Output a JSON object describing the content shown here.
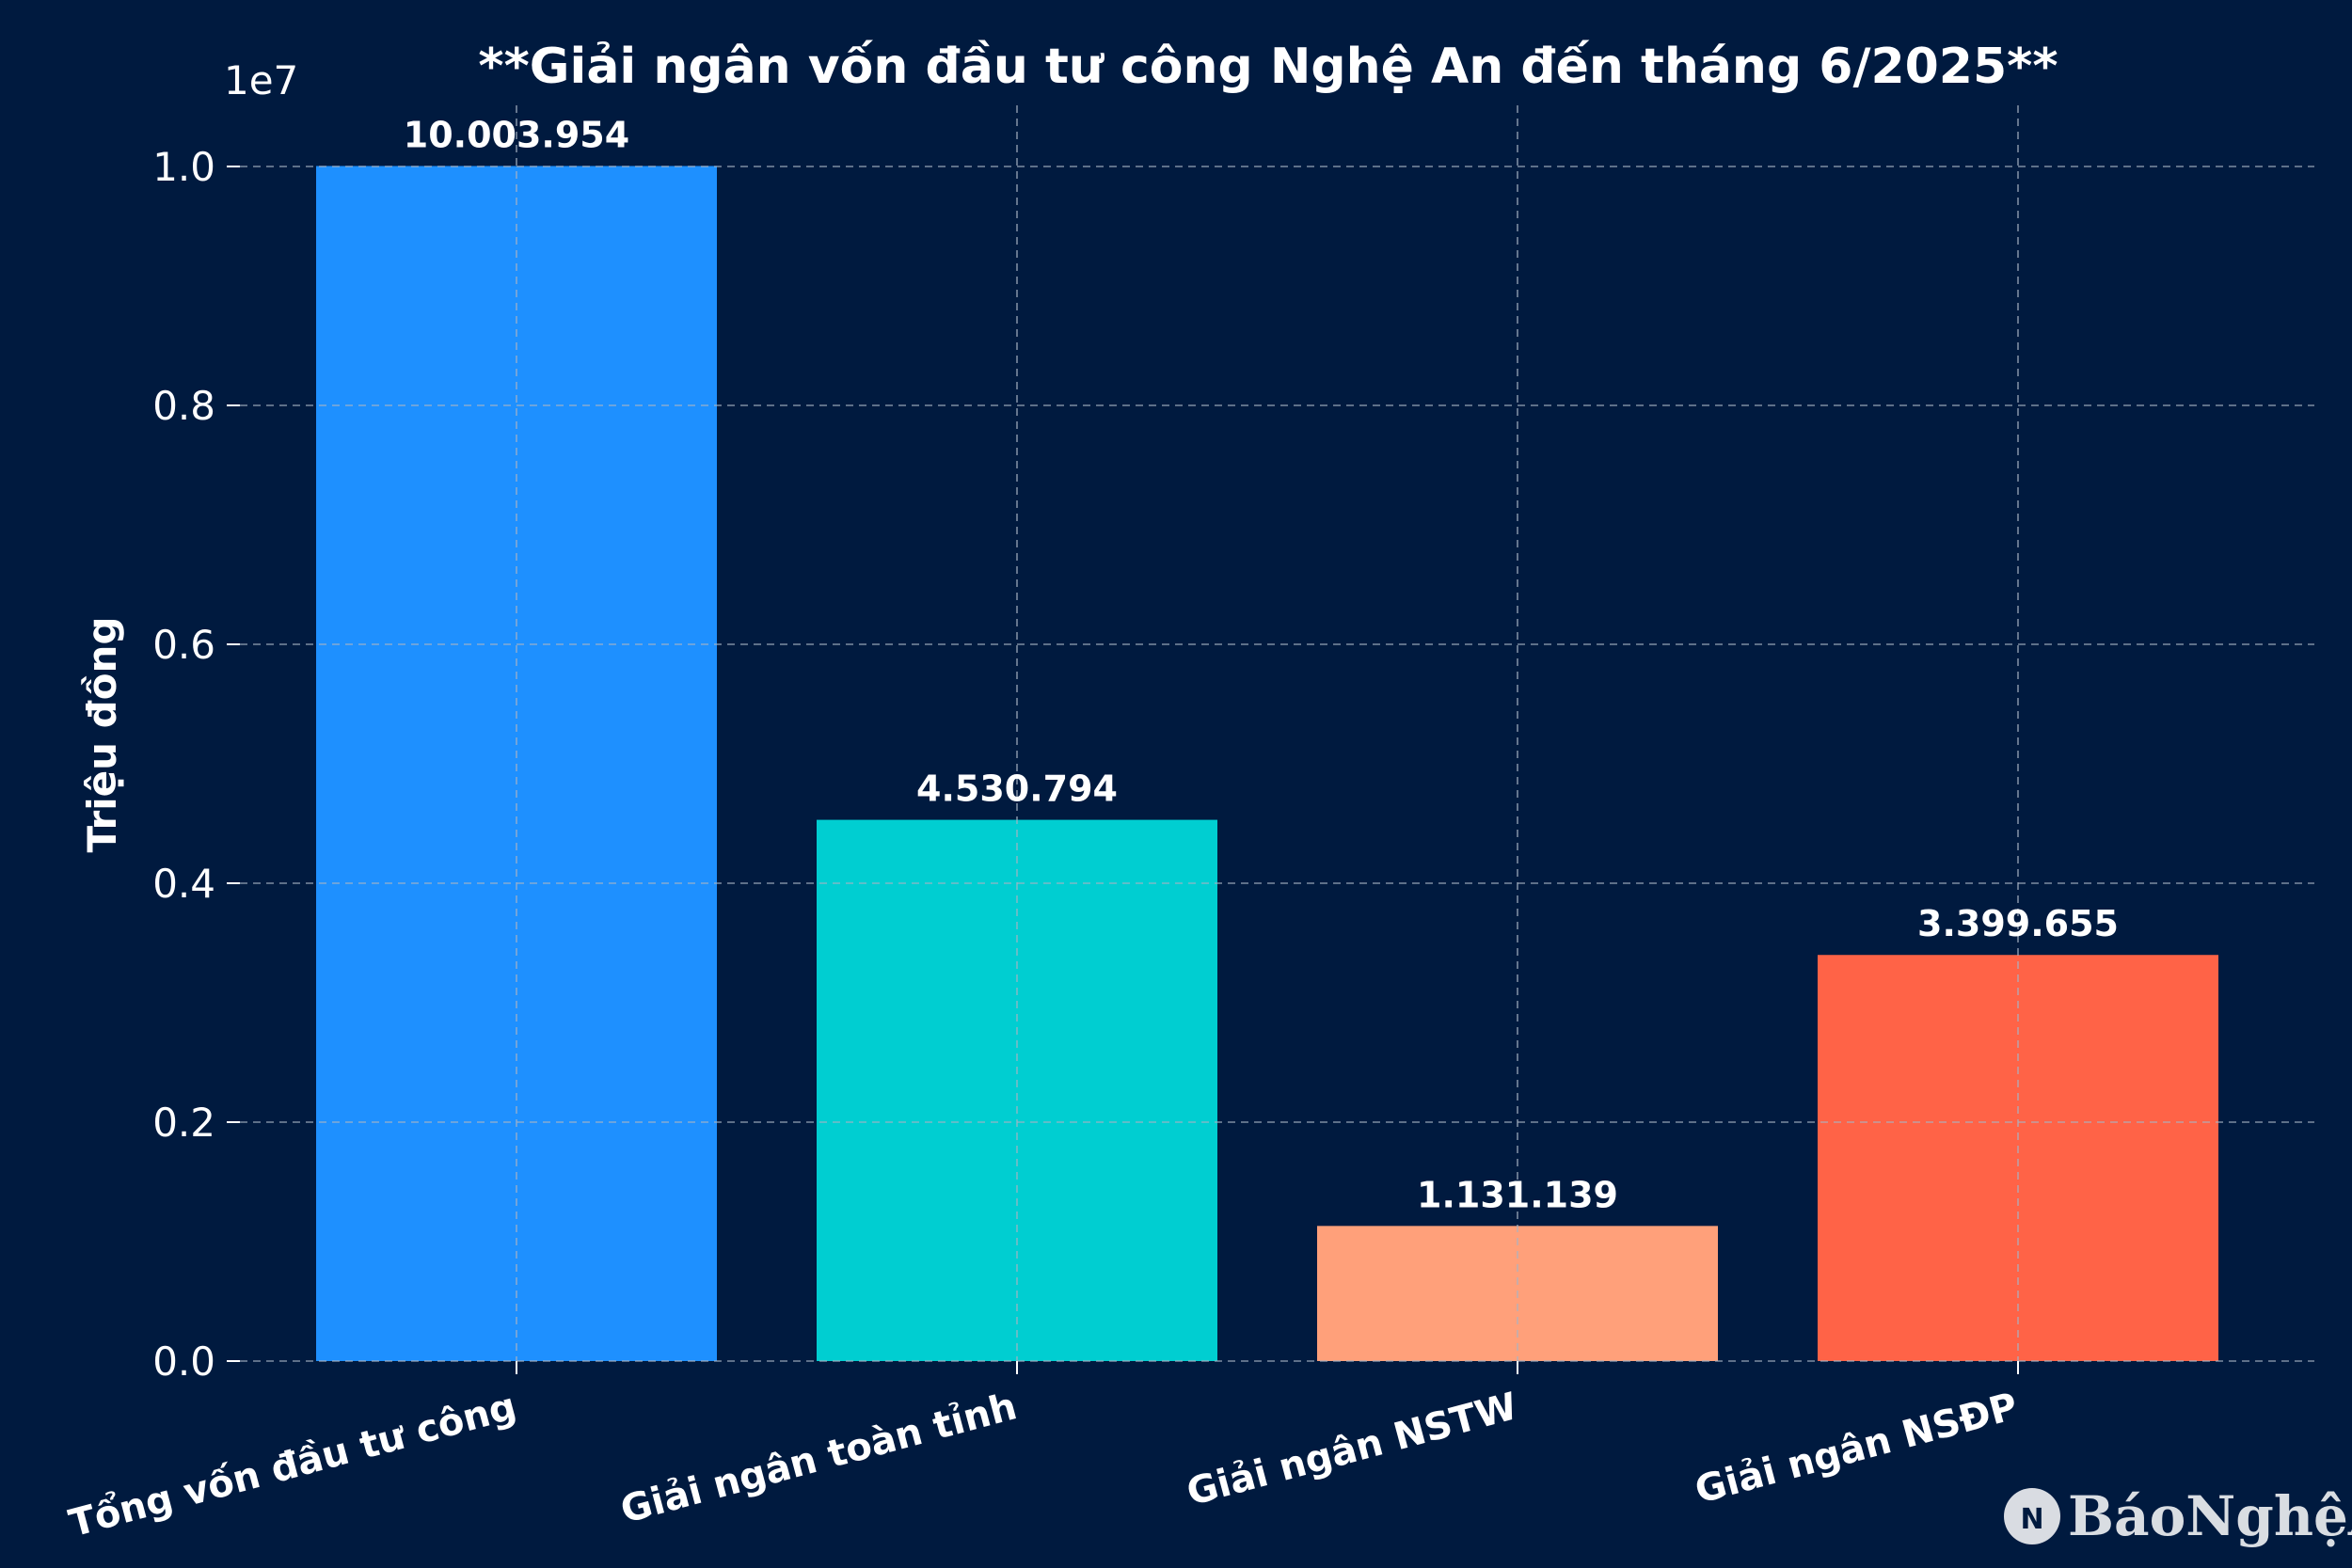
{
  "chart_data": {
    "type": "bar",
    "title": "**Giải ngân vốn đầu tư công Nghệ An đến tháng 6/2025**",
    "xlabel": "",
    "ylabel": "Triệu đồng",
    "axis_offset_label": "1e7",
    "ylim": [
      0,
      10500000
    ],
    "yticks": [
      0,
      2000000,
      4000000,
      6000000,
      8000000,
      10000000
    ],
    "ytick_labels": [
      "0.0",
      "0.2",
      "0.4",
      "0.6",
      "0.8",
      "1.0"
    ],
    "grid": true,
    "categories": [
      "Tổng vốn đầu tư công",
      "Giải ngân toàn tỉnh",
      "Giải ngân NSTW",
      "Giải ngân NSĐP"
    ],
    "values": [
      10003954,
      4530794,
      1131139,
      3399655
    ],
    "data_labels": [
      "10.003.954",
      "4.530.794",
      "1.131.139",
      "3.399.655"
    ],
    "colors": [
      "#1e90ff",
      "#00ced1",
      "#ffa07a",
      "#ff6347"
    ]
  },
  "watermark": {
    "text": "BáoNghệAn",
    "icon": "nghe-an-logo-icon"
  }
}
